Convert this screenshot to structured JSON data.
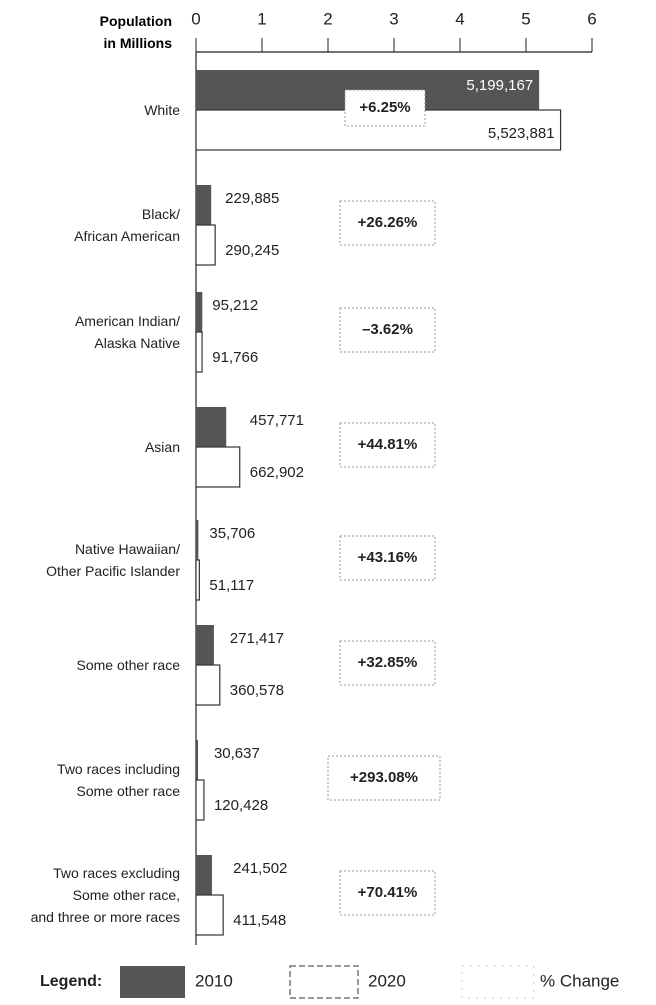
{
  "chart_data": {
    "type": "bar",
    "orientation": "horizontal",
    "xlabel": "Population\nin Millions",
    "categories": [
      "White",
      "Black/\nAfrican American",
      "American Indian/\nAlaska Native",
      "Asian",
      "Native Hawaiian/\nOther Pacific Islander",
      "Some other race",
      "Two races including\nSome other race",
      "Two races excluding\nSome other race,\nand three or more races"
    ],
    "series": [
      {
        "name": "2010",
        "color": "#555555",
        "values": [
          5.199167,
          0.229885,
          0.095212,
          0.457771,
          0.035706,
          0.271417,
          0.030637,
          0.241502
        ],
        "value_labels": [
          "5,199,167",
          "229,885",
          "95,212",
          "457,771",
          "35,706",
          "271,417",
          "30,637",
          "241,502"
        ]
      },
      {
        "name": "2020",
        "color": "#ffffff",
        "values": [
          5.523881,
          0.290245,
          0.091766,
          0.662902,
          0.051117,
          0.360578,
          0.120428,
          0.411548
        ],
        "value_labels": [
          "5,523,881",
          "290,245",
          "91,766",
          "662,902",
          "51,117",
          "360,578",
          "120,428",
          "411,548"
        ]
      }
    ],
    "change_labels": [
      "+6.25%",
      "+26.26%",
      "–3.62%",
      "+44.81%",
      "+43.16%",
      "+32.85%",
      "+293.08%",
      "+70.41%"
    ],
    "legend_title": "Legend:",
    "change_legend": "% Change",
    "xlim": [
      0,
      6
    ],
    "xticks": [
      0,
      1,
      2,
      3,
      4,
      5,
      6
    ]
  }
}
